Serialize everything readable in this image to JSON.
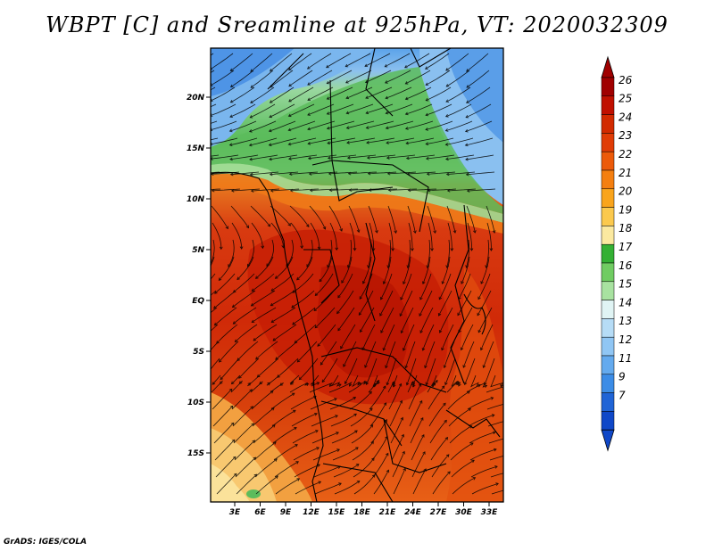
{
  "title": "WBPT [C] and Sreamline at 925hPa, VT: 2020032309",
  "credit": "GrADS: IGES/COLA",
  "map": {
    "lat_ticks": [
      "20N",
      "15N",
      "10N",
      "5N",
      "EQ",
      "5S",
      "10S",
      "15S"
    ],
    "lon_ticks": [
      "3E",
      "6E",
      "9E",
      "12E",
      "15E",
      "18E",
      "21E",
      "24E",
      "27E",
      "30E",
      "33E"
    ]
  },
  "colorbar": {
    "labels": [
      "26",
      "25",
      "24",
      "23",
      "22",
      "21",
      "20",
      "19",
      "18",
      "17",
      "16",
      "15",
      "14",
      "13",
      "12",
      "11",
      "9",
      "7"
    ],
    "colors": [
      "#a00000",
      "#c01000",
      "#d22a00",
      "#e03c06",
      "#ec5a0a",
      "#f47f10",
      "#f9a41c",
      "#fbc94e",
      "#fbe9a0",
      "#34b034",
      "#70cc62",
      "#a8e2a0",
      "#e0f4f4",
      "#b6dcf6",
      "#90c6f4",
      "#64aaee",
      "#3c8ce6",
      "#2064d6",
      "#1048c8"
    ],
    "under_color": "#1048c8",
    "over_color": "#a00000"
  }
}
